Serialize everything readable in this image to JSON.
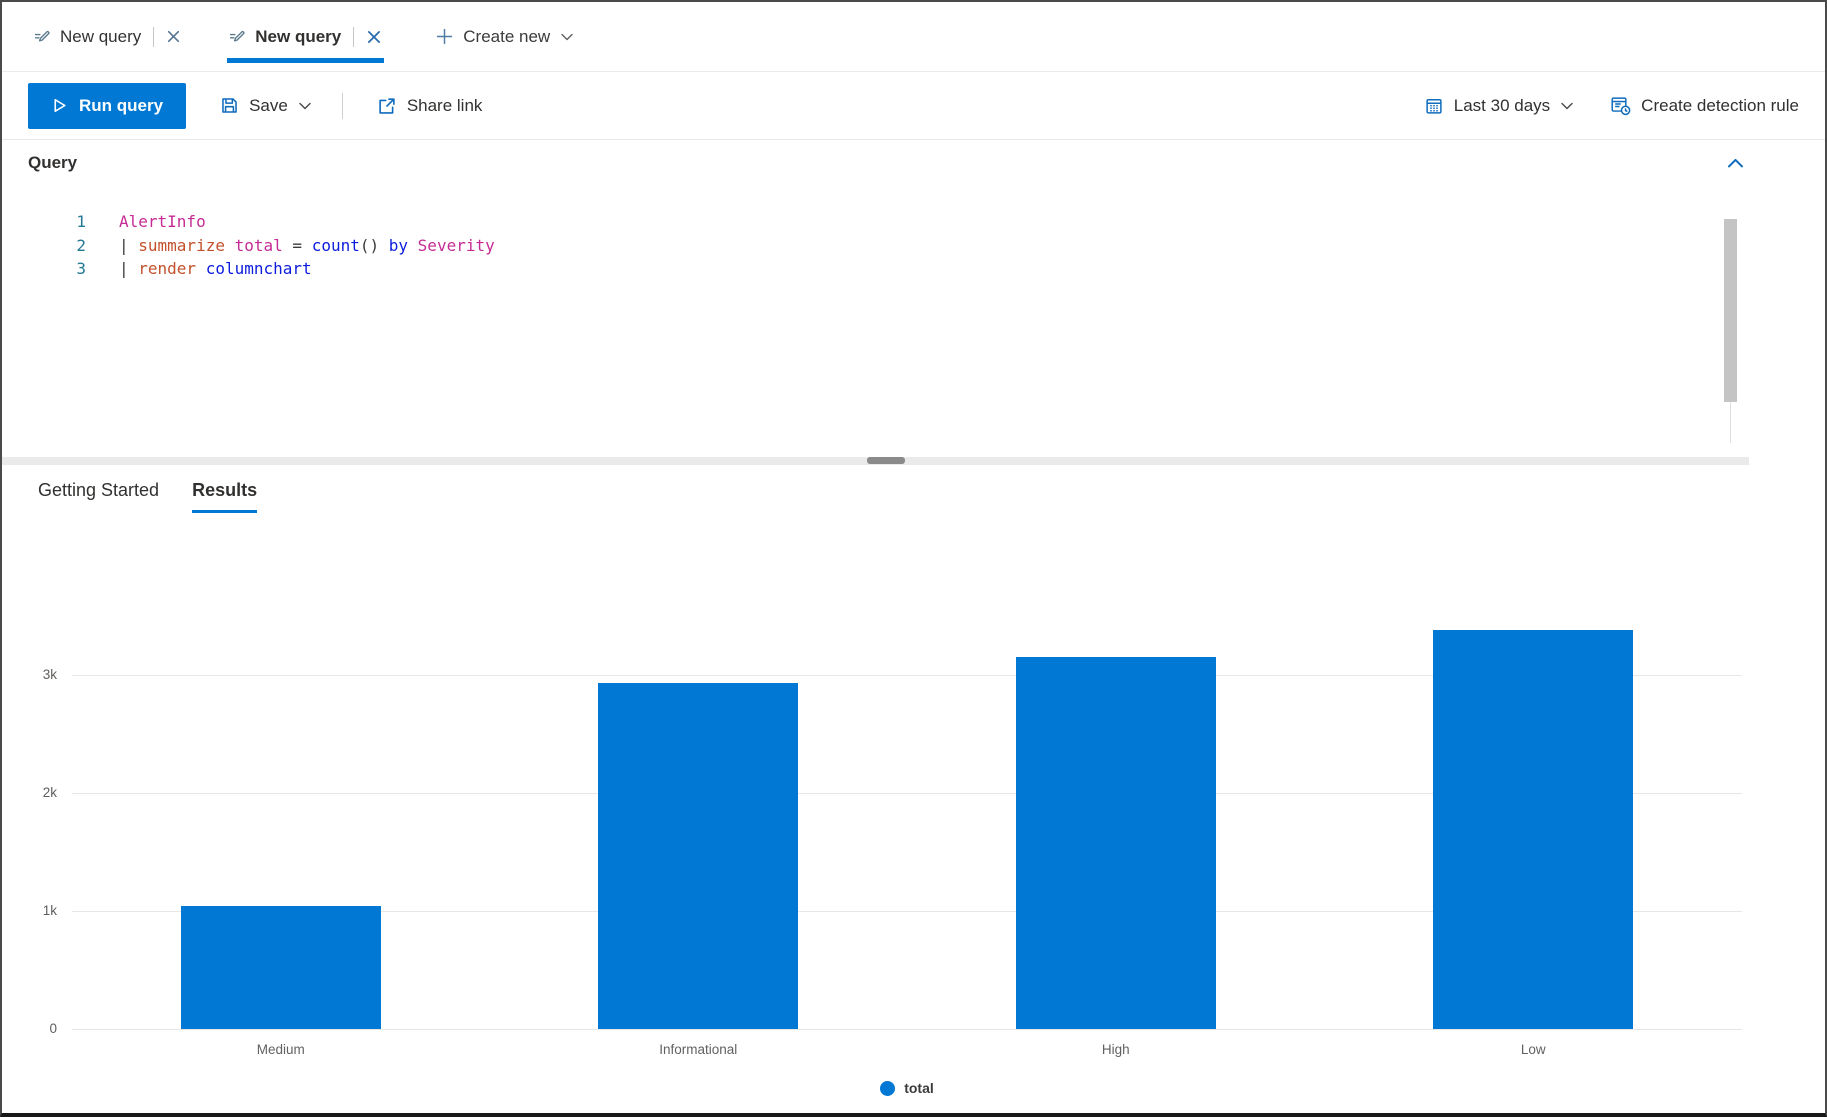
{
  "tabs": {
    "items": [
      {
        "label": "New query",
        "active": false
      },
      {
        "label": "New query",
        "active": true
      }
    ],
    "create_new_label": "Create new"
  },
  "toolbar": {
    "run_query_label": "Run query",
    "save_label": "Save",
    "share_link_label": "Share link",
    "time_range_label": "Last 30 days",
    "create_detection_rule_label": "Create detection rule"
  },
  "query_panel": {
    "title": "Query",
    "code_lines": [
      [
        {
          "t": "AlertInfo",
          "c": "table"
        }
      ],
      [
        {
          "t": "| ",
          "c": "punct"
        },
        {
          "t": "summarize",
          "c": "op"
        },
        {
          "t": " ",
          "c": "punct"
        },
        {
          "t": "total",
          "c": "col"
        },
        {
          "t": " = ",
          "c": "punct"
        },
        {
          "t": "count",
          "c": "fn"
        },
        {
          "t": "() ",
          "c": "punct"
        },
        {
          "t": "by",
          "c": "kw"
        },
        {
          "t": " ",
          "c": "punct"
        },
        {
          "t": "Severity",
          "c": "col"
        }
      ],
      [
        {
          "t": "| ",
          "c": "punct"
        },
        {
          "t": "render",
          "c": "op"
        },
        {
          "t": " ",
          "c": "punct"
        },
        {
          "t": "columnchart",
          "c": "kw"
        }
      ]
    ]
  },
  "results_tabs": {
    "items": [
      {
        "label": "Getting Started",
        "active": false
      },
      {
        "label": "Results",
        "active": true
      }
    ]
  },
  "chart_data": {
    "type": "bar",
    "categories": [
      "Medium",
      "Informational",
      "High",
      "Low"
    ],
    "series": [
      {
        "name": "total",
        "values": [
          1040,
          2930,
          3150,
          3380
        ]
      }
    ],
    "yticks": [
      {
        "label": "0",
        "value": 0
      },
      {
        "label": "1k",
        "value": 1000
      },
      {
        "label": "2k",
        "value": 2000
      },
      {
        "label": "3k",
        "value": 3000
      }
    ],
    "ylim": [
      0,
      3500
    ],
    "title": "",
    "xlabel": "",
    "ylabel": "",
    "grid": true,
    "legend_position": "bottom",
    "bar_color": "#0078d4"
  },
  "icons": {
    "tab_icon": "query-pencil-icon",
    "close": "close-x-icon",
    "plus": "plus-icon",
    "chevron_down": "chevron-down-icon",
    "chevron_up": "chevron-up-icon",
    "play": "play-icon",
    "save": "floppy-disk-icon",
    "share": "share-icon",
    "calendar": "calendar-icon",
    "detection_rule": "detection-rule-icon"
  },
  "colors": {
    "accent": "#0078d4",
    "bar": "#0078d4",
    "code_table": "#c52b94",
    "code_operator": "#c2512c",
    "code_keyword": "#0c1ddd",
    "line_number": "#237893"
  }
}
